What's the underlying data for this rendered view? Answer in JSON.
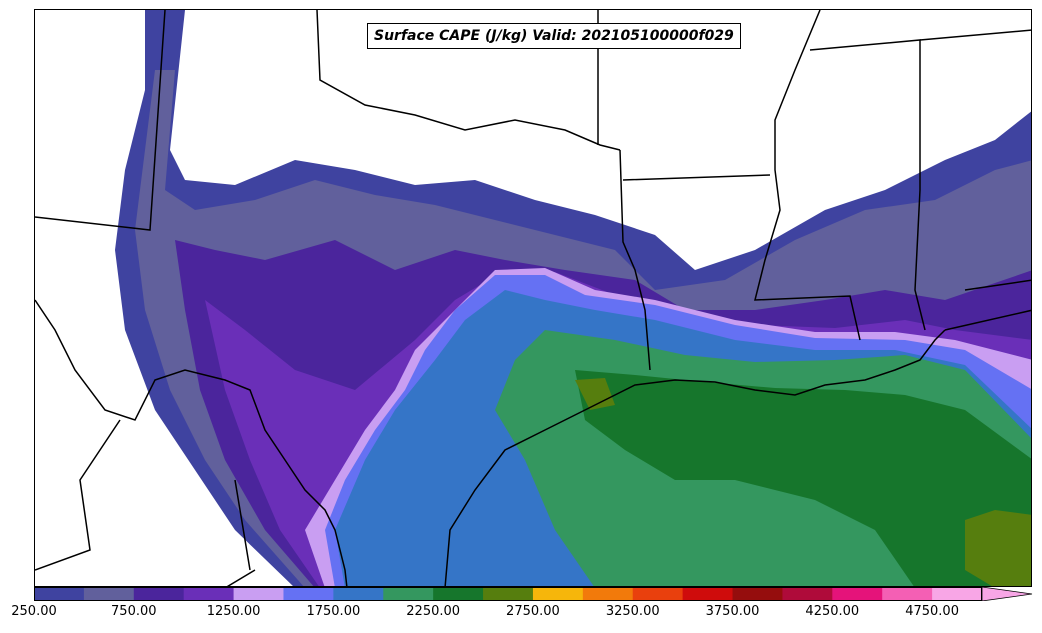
{
  "map": {
    "title": "Surface CAPE (J/kg) Valid: 202105100000f029",
    "units": "J/kg",
    "valid_time": "202105100000f029"
  },
  "colorbar": {
    "levels": [
      250,
      500,
      750,
      1000,
      1250,
      1500,
      1750,
      2000,
      2250,
      2500,
      2750,
      3000,
      3250,
      3500,
      3750,
      4000,
      4250,
      4500,
      4750,
      5000
    ],
    "colors": [
      "#3f43a0",
      "#61609c",
      "#4b259c",
      "#6a2fb8",
      "#c99ef2",
      "#6571f3",
      "#3575c7",
      "#34975f",
      "#16762c",
      "#567e0e",
      "#f6b60b",
      "#f27a0b",
      "#e9400d",
      "#cf0c0c",
      "#950d0d",
      "#af0b3a",
      "#e5137a",
      "#f45fb4",
      "#f8a6e6"
    ],
    "extend": "max",
    "tick_labels": [
      "250.00",
      "750.00",
      "1250.00",
      "1750.00",
      "2250.00",
      "2750.00",
      "3250.00",
      "3750.00",
      "4250.00",
      "4750.00"
    ],
    "tick_values": [
      250,
      750,
      1250,
      1750,
      2250,
      2750,
      3250,
      3750,
      4250,
      4750
    ]
  }
}
